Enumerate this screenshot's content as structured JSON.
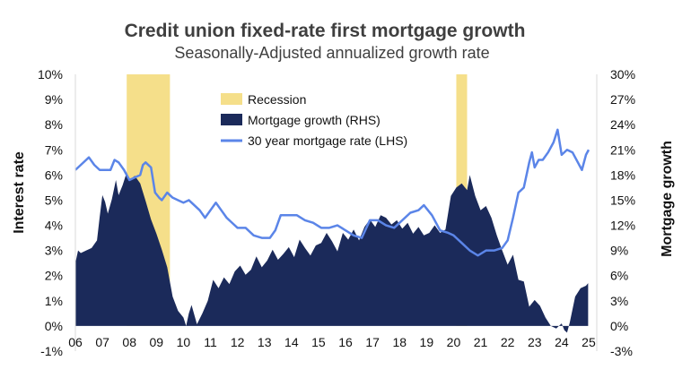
{
  "chart_data": {
    "type": "area",
    "title": "Credit union fixed-rate first mortgage growth",
    "subtitle": "Seasonally-Adjusted annualized growth rate",
    "ylabel_left": "Interest rate",
    "ylabel_right": "Mortgage growth",
    "x_tick_labels": [
      "06",
      "07",
      "08",
      "09",
      "10",
      "11",
      "12",
      "13",
      "14",
      "15",
      "16",
      "17",
      "18",
      "19",
      "20",
      "21",
      "22",
      "23",
      "24",
      "25"
    ],
    "xlim": [
      2006.0,
      2025.3
    ],
    "y_left": {
      "range": [
        -1,
        10
      ],
      "ticks": [
        "-1%",
        "0%",
        "1%",
        "2%",
        "3%",
        "4%",
        "5%",
        "6%",
        "7%",
        "8%",
        "9%",
        "10%"
      ]
    },
    "y_right": {
      "range": [
        -3,
        30
      ],
      "ticks": [
        "-3%",
        "0%",
        "3%",
        "6%",
        "9%",
        "12%",
        "15%",
        "18%",
        "21%",
        "24%",
        "27%",
        "30%"
      ]
    },
    "grid": false,
    "legend_position": "top-center",
    "colors": {
      "recession": "#f5df8a",
      "mortgage_growth": "#1b2a5a",
      "mortgage_rate": "#5b85e8",
      "title": "#3f3f3f"
    },
    "series": [
      {
        "name": "Recession",
        "type": "band",
        "axis": "right",
        "color": "#f5df8a",
        "ranges": [
          [
            2007.9,
            2009.5
          ],
          [
            2020.1,
            2020.5
          ]
        ]
      },
      {
        "name": "Mortgage growth (RHS)",
        "type": "area",
        "axis": "right",
        "color": "#1b2a5a",
        "x": [
          2006.0,
          2006.1,
          2006.2,
          2006.4,
          2006.6,
          2006.8,
          2006.9,
          2007.0,
          2007.1,
          2007.2,
          2007.35,
          2007.5,
          2007.6,
          2007.75,
          2007.9,
          2008.0,
          2008.2,
          2008.4,
          2008.6,
          2008.8,
          2009.0,
          2009.2,
          2009.4,
          2009.6,
          2009.8,
          2010.0,
          2010.1,
          2010.2,
          2010.3,
          2010.5,
          2010.7,
          2010.9,
          2011.1,
          2011.3,
          2011.5,
          2011.7,
          2011.9,
          2012.1,
          2012.3,
          2012.5,
          2012.7,
          2012.9,
          2013.1,
          2013.3,
          2013.5,
          2013.7,
          2013.9,
          2014.1,
          2014.3,
          2014.5,
          2014.7,
          2014.9,
          2015.1,
          2015.3,
          2015.5,
          2015.7,
          2015.9,
          2016.1,
          2016.3,
          2016.5,
          2016.7,
          2016.9,
          2017.1,
          2017.3,
          2017.5,
          2017.7,
          2017.9,
          2018.1,
          2018.3,
          2018.5,
          2018.7,
          2018.9,
          2019.1,
          2019.3,
          2019.5,
          2019.7,
          2019.9,
          2020.1,
          2020.3,
          2020.5,
          2020.6,
          2020.8,
          2021.0,
          2021.2,
          2021.4,
          2021.6,
          2021.8,
          2022.0,
          2022.2,
          2022.4,
          2022.6,
          2022.8,
          2023.0,
          2023.2,
          2023.4,
          2023.6,
          2023.8,
          2023.9,
          2024.0,
          2024.1,
          2024.2,
          2024.3,
          2024.5,
          2024.7,
          2024.9,
          2024.98
        ],
        "values": [
          7.5,
          9,
          8.7,
          9,
          9.3,
          10.2,
          13,
          15.6,
          14.8,
          13.4,
          15.1,
          17.4,
          15.6,
          16.8,
          18.3,
          17.4,
          17.9,
          17,
          14.9,
          12.7,
          11,
          9.1,
          7,
          3.5,
          1.8,
          1,
          0,
          1.5,
          2.5,
          0.2,
          1.5,
          3,
          5.5,
          4.5,
          5.8,
          5,
          6.5,
          7.2,
          6.1,
          6.7,
          8.3,
          7,
          7.8,
          9.1,
          7.9,
          8.6,
          9.4,
          8.2,
          10.3,
          9.3,
          8.4,
          9.6,
          9.9,
          11.1,
          10.1,
          8.9,
          11.1,
          10.3,
          11.5,
          10.2,
          11.8,
          12.7,
          11.8,
          13.2,
          12.9,
          12.1,
          12.6,
          11.6,
          12.3,
          11,
          11.8,
          10.8,
          11.1,
          12,
          11.1,
          11.5,
          15.5,
          16.5,
          17,
          16.2,
          18,
          15.5,
          13.8,
          14.3,
          12.9,
          10.8,
          9,
          7.3,
          8.5,
          5.5,
          5.3,
          2.3,
          3.1,
          2.4,
          1,
          0,
          -0.3,
          0,
          0.3,
          -0.5,
          -0.8,
          0.4,
          3.5,
          4.5,
          4.8,
          5.1
        ]
      },
      {
        "name": "30 year mortgage rate (LHS)",
        "type": "line",
        "axis": "left",
        "color": "#5b85e8",
        "x": [
          2006.0,
          2006.2,
          2006.4,
          2006.5,
          2006.7,
          2006.9,
          2007.1,
          2007.3,
          2007.45,
          2007.6,
          2007.8,
          2008.0,
          2008.2,
          2008.4,
          2008.5,
          2008.6,
          2008.8,
          2008.95,
          2009.1,
          2009.2,
          2009.4,
          2009.6,
          2009.8,
          2010.0,
          2010.2,
          2010.4,
          2010.6,
          2010.8,
          2011.0,
          2011.2,
          2011.4,
          2011.6,
          2011.8,
          2012.0,
          2012.3,
          2012.6,
          2012.9,
          2013.2,
          2013.4,
          2013.6,
          2013.9,
          2014.2,
          2014.5,
          2014.8,
          2015.1,
          2015.4,
          2015.7,
          2016.0,
          2016.3,
          2016.6,
          2016.9,
          2017.2,
          2017.5,
          2017.8,
          2018.1,
          2018.4,
          2018.7,
          2018.9,
          2019.2,
          2019.5,
          2019.8,
          2020.0,
          2020.3,
          2020.6,
          2020.9,
          2021.2,
          2021.5,
          2021.8,
          2022.0,
          2022.2,
          2022.4,
          2022.6,
          2022.8,
          2022.9,
          2023.0,
          2023.15,
          2023.3,
          2023.5,
          2023.7,
          2023.85,
          2024.0,
          2024.2,
          2024.4,
          2024.6,
          2024.75,
          2024.9,
          2025.0
        ],
        "values": [
          6.2,
          6.4,
          6.6,
          6.7,
          6.4,
          6.2,
          6.2,
          6.2,
          6.6,
          6.5,
          6.2,
          5.8,
          5.9,
          6.0,
          6.4,
          6.5,
          6.3,
          5.3,
          5.1,
          5.0,
          5.3,
          5.1,
          5.0,
          4.9,
          5.0,
          4.8,
          4.6,
          4.3,
          4.6,
          4.9,
          4.6,
          4.3,
          4.1,
          3.9,
          3.9,
          3.6,
          3.5,
          3.5,
          3.8,
          4.4,
          4.4,
          4.4,
          4.2,
          4.1,
          3.9,
          3.9,
          4.0,
          3.8,
          3.6,
          3.5,
          4.2,
          4.2,
          4.0,
          3.9,
          4.2,
          4.5,
          4.6,
          4.8,
          4.4,
          3.8,
          3.7,
          3.6,
          3.3,
          3.0,
          2.8,
          3.0,
          3.0,
          3.1,
          3.4,
          4.3,
          5.3,
          5.5,
          6.5,
          6.9,
          6.3,
          6.6,
          6.6,
          6.9,
          7.3,
          7.8,
          6.8,
          7.0,
          6.9,
          6.5,
          6.2,
          6.8,
          7.0
        ]
      }
    ]
  }
}
